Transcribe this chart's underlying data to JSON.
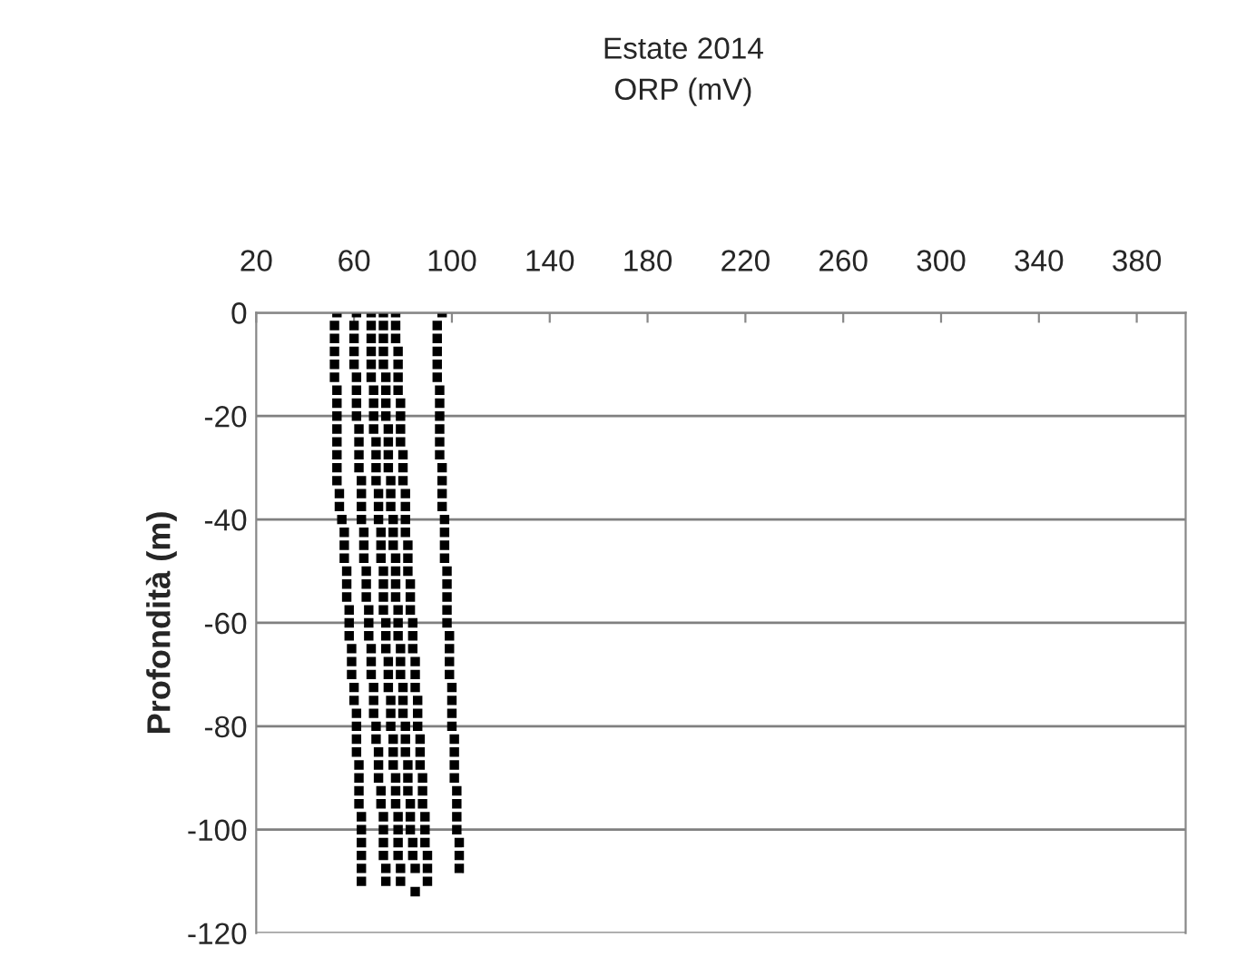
{
  "chart_data": {
    "type": "scatter",
    "title": "Estate 2014",
    "subtitle": "ORP (mV)",
    "ylabel": "Profondità (m)",
    "xlim": [
      20,
      400
    ],
    "xticks": [
      20,
      60,
      100,
      140,
      180,
      220,
      260,
      300,
      340,
      380
    ],
    "ylim": [
      -120,
      0
    ],
    "yticks": [
      -120,
      -100,
      -80,
      -60,
      -40,
      -20,
      0
    ],
    "grid": "y",
    "marker": "square",
    "series": [
      {
        "color": "#000000",
        "x": [
          53,
          52,
          52,
          52,
          52,
          52,
          53,
          53,
          53,
          53,
          53,
          53,
          53,
          53,
          54,
          54,
          55,
          56,
          56,
          56,
          57,
          57,
          57,
          58,
          58,
          58,
          59,
          59,
          59,
          60,
          60,
          61,
          61,
          61,
          61,
          62,
          62,
          62,
          62,
          63,
          63,
          63,
          63,
          63,
          63
        ],
        "values": [
          0,
          -2.5,
          -5,
          -7.5,
          -10,
          -12.5,
          -15,
          -17.5,
          -20,
          -22.5,
          -25,
          -27.5,
          -30,
          -32.5,
          -35,
          -37.5,
          -40,
          -42.5,
          -45,
          -47.5,
          -50,
          -52.5,
          -55,
          -57.5,
          -60,
          -62.5,
          -65,
          -67.5,
          -70,
          -72.5,
          -75,
          -77.5,
          -80,
          -82.5,
          -85,
          -87.5,
          -90,
          -92.5,
          -95,
          -97.5,
          -100,
          -102.5,
          -105,
          -107.5,
          -110
        ]
      },
      {
        "color": "#000000",
        "x": [
          61,
          60,
          60,
          60,
          60,
          61,
          61,
          61,
          61,
          62,
          62,
          62,
          62,
          63,
          63,
          63,
          63,
          64,
          64,
          64,
          65,
          65,
          65,
          66,
          66,
          66,
          67,
          67,
          67,
          68,
          68,
          68,
          69,
          69,
          70,
          70,
          70,
          71,
          71,
          72,
          72,
          72,
          72,
          73,
          73
        ],
        "values": [
          0,
          -2.5,
          -5,
          -7.5,
          -10,
          -12.5,
          -15,
          -17.5,
          -20,
          -22.5,
          -25,
          -27.5,
          -30,
          -32.5,
          -35,
          -37.5,
          -40,
          -42.5,
          -45,
          -47.5,
          -50,
          -52.5,
          -55,
          -57.5,
          -60,
          -62.5,
          -65,
          -67.5,
          -70,
          -72.5,
          -75,
          -77.5,
          -80,
          -82.5,
          -85,
          -87.5,
          -90,
          -92.5,
          -95,
          -97.5,
          -100,
          -102.5,
          -105,
          -107.5,
          -110
        ]
      },
      {
        "color": "#000000",
        "x": [
          67,
          67,
          67,
          67,
          67,
          67,
          68,
          68,
          68,
          68,
          69,
          69,
          69,
          69,
          70,
          70,
          70,
          71,
          71,
          71,
          72,
          72,
          72,
          72,
          73,
          73,
          73,
          74,
          74,
          74,
          75,
          75,
          75,
          76,
          76,
          76,
          77,
          77,
          77,
          78,
          78,
          78,
          78,
          79,
          79
        ],
        "values": [
          0,
          -2.5,
          -5,
          -7.5,
          -10,
          -12.5,
          -15,
          -17.5,
          -20,
          -22.5,
          -25,
          -27.5,
          -30,
          -32.5,
          -35,
          -37.5,
          -40,
          -42.5,
          -45,
          -47.5,
          -50,
          -52.5,
          -55,
          -57.5,
          -60,
          -62.5,
          -65,
          -67.5,
          -70,
          -72.5,
          -75,
          -77.5,
          -80,
          -82.5,
          -85,
          -87.5,
          -90,
          -92.5,
          -95,
          -97.5,
          -100,
          -102.5,
          -105,
          -107.5,
          -110
        ]
      },
      {
        "color": "#000000",
        "x": [
          72,
          72,
          72,
          72,
          72,
          73,
          73,
          73,
          73,
          74,
          74,
          74,
          74,
          75,
          75,
          75,
          76,
          76,
          76,
          77,
          77,
          77,
          77,
          78,
          78,
          78,
          79,
          79,
          79,
          80,
          80,
          80,
          81,
          81,
          81,
          82,
          82,
          82,
          83,
          83,
          83,
          84,
          84,
          85,
          85
        ],
        "values": [
          0,
          -2.5,
          -5,
          -7.5,
          -10,
          -12.5,
          -15,
          -17.5,
          -20,
          -22.5,
          -25,
          -27.5,
          -30,
          -32.5,
          -35,
          -37.5,
          -40,
          -42.5,
          -45,
          -47.5,
          -50,
          -52.5,
          -55,
          -57.5,
          -60,
          -62.5,
          -65,
          -67.5,
          -70,
          -72.5,
          -75,
          -77.5,
          -80,
          -82.5,
          -85,
          -87.5,
          -90,
          -92.5,
          -95,
          -97.5,
          -100,
          -102.5,
          -105,
          -107.5,
          -112
        ]
      },
      {
        "color": "#000000",
        "x": [
          77,
          77,
          77,
          78,
          78,
          78,
          78,
          79,
          79,
          79,
          79,
          80,
          80,
          80,
          81,
          81,
          81,
          81,
          82,
          82,
          82,
          83,
          83,
          83,
          84,
          84,
          84,
          85,
          85,
          85,
          86,
          86,
          86,
          87,
          87,
          87,
          88,
          88,
          88,
          89,
          89,
          89,
          90,
          90,
          90
        ],
        "values": [
          0,
          -2.5,
          -5,
          -7.5,
          -10,
          -12.5,
          -15,
          -17.5,
          -20,
          -22.5,
          -25,
          -27.5,
          -30,
          -32.5,
          -35,
          -37.5,
          -40,
          -42.5,
          -45,
          -47.5,
          -50,
          -52.5,
          -55,
          -57.5,
          -60,
          -62.5,
          -65,
          -67.5,
          -70,
          -72.5,
          -75,
          -77.5,
          -80,
          -82.5,
          -85,
          -87.5,
          -90,
          -92.5,
          -95,
          -97.5,
          -100,
          -102.5,
          -105,
          -107.5,
          -110
        ]
      },
      {
        "color": "#000000",
        "x": [
          96,
          94,
          94,
          94,
          94,
          94,
          95,
          95,
          95,
          95,
          95,
          95,
          96,
          96,
          96,
          96,
          97,
          97,
          97,
          97,
          98,
          98,
          98,
          98,
          98,
          99,
          99,
          99,
          99,
          100,
          100,
          100,
          100,
          101,
          101,
          101,
          101,
          102,
          102,
          102,
          102,
          103,
          103,
          103
        ],
        "values": [
          0,
          -2.5,
          -5,
          -7.5,
          -10,
          -12.5,
          -15,
          -17.5,
          -20,
          -22.5,
          -25,
          -27.5,
          -30,
          -32.5,
          -35,
          -37.5,
          -40,
          -42.5,
          -45,
          -47.5,
          -50,
          -52.5,
          -55,
          -57.5,
          -60,
          -62.5,
          -65,
          -67.5,
          -70,
          -72.5,
          -75,
          -77.5,
          -80,
          -82.5,
          -85,
          -87.5,
          -90,
          -92.5,
          -95,
          -97.5,
          -100,
          -102.5,
          -105,
          -107.5
        ]
      }
    ]
  }
}
